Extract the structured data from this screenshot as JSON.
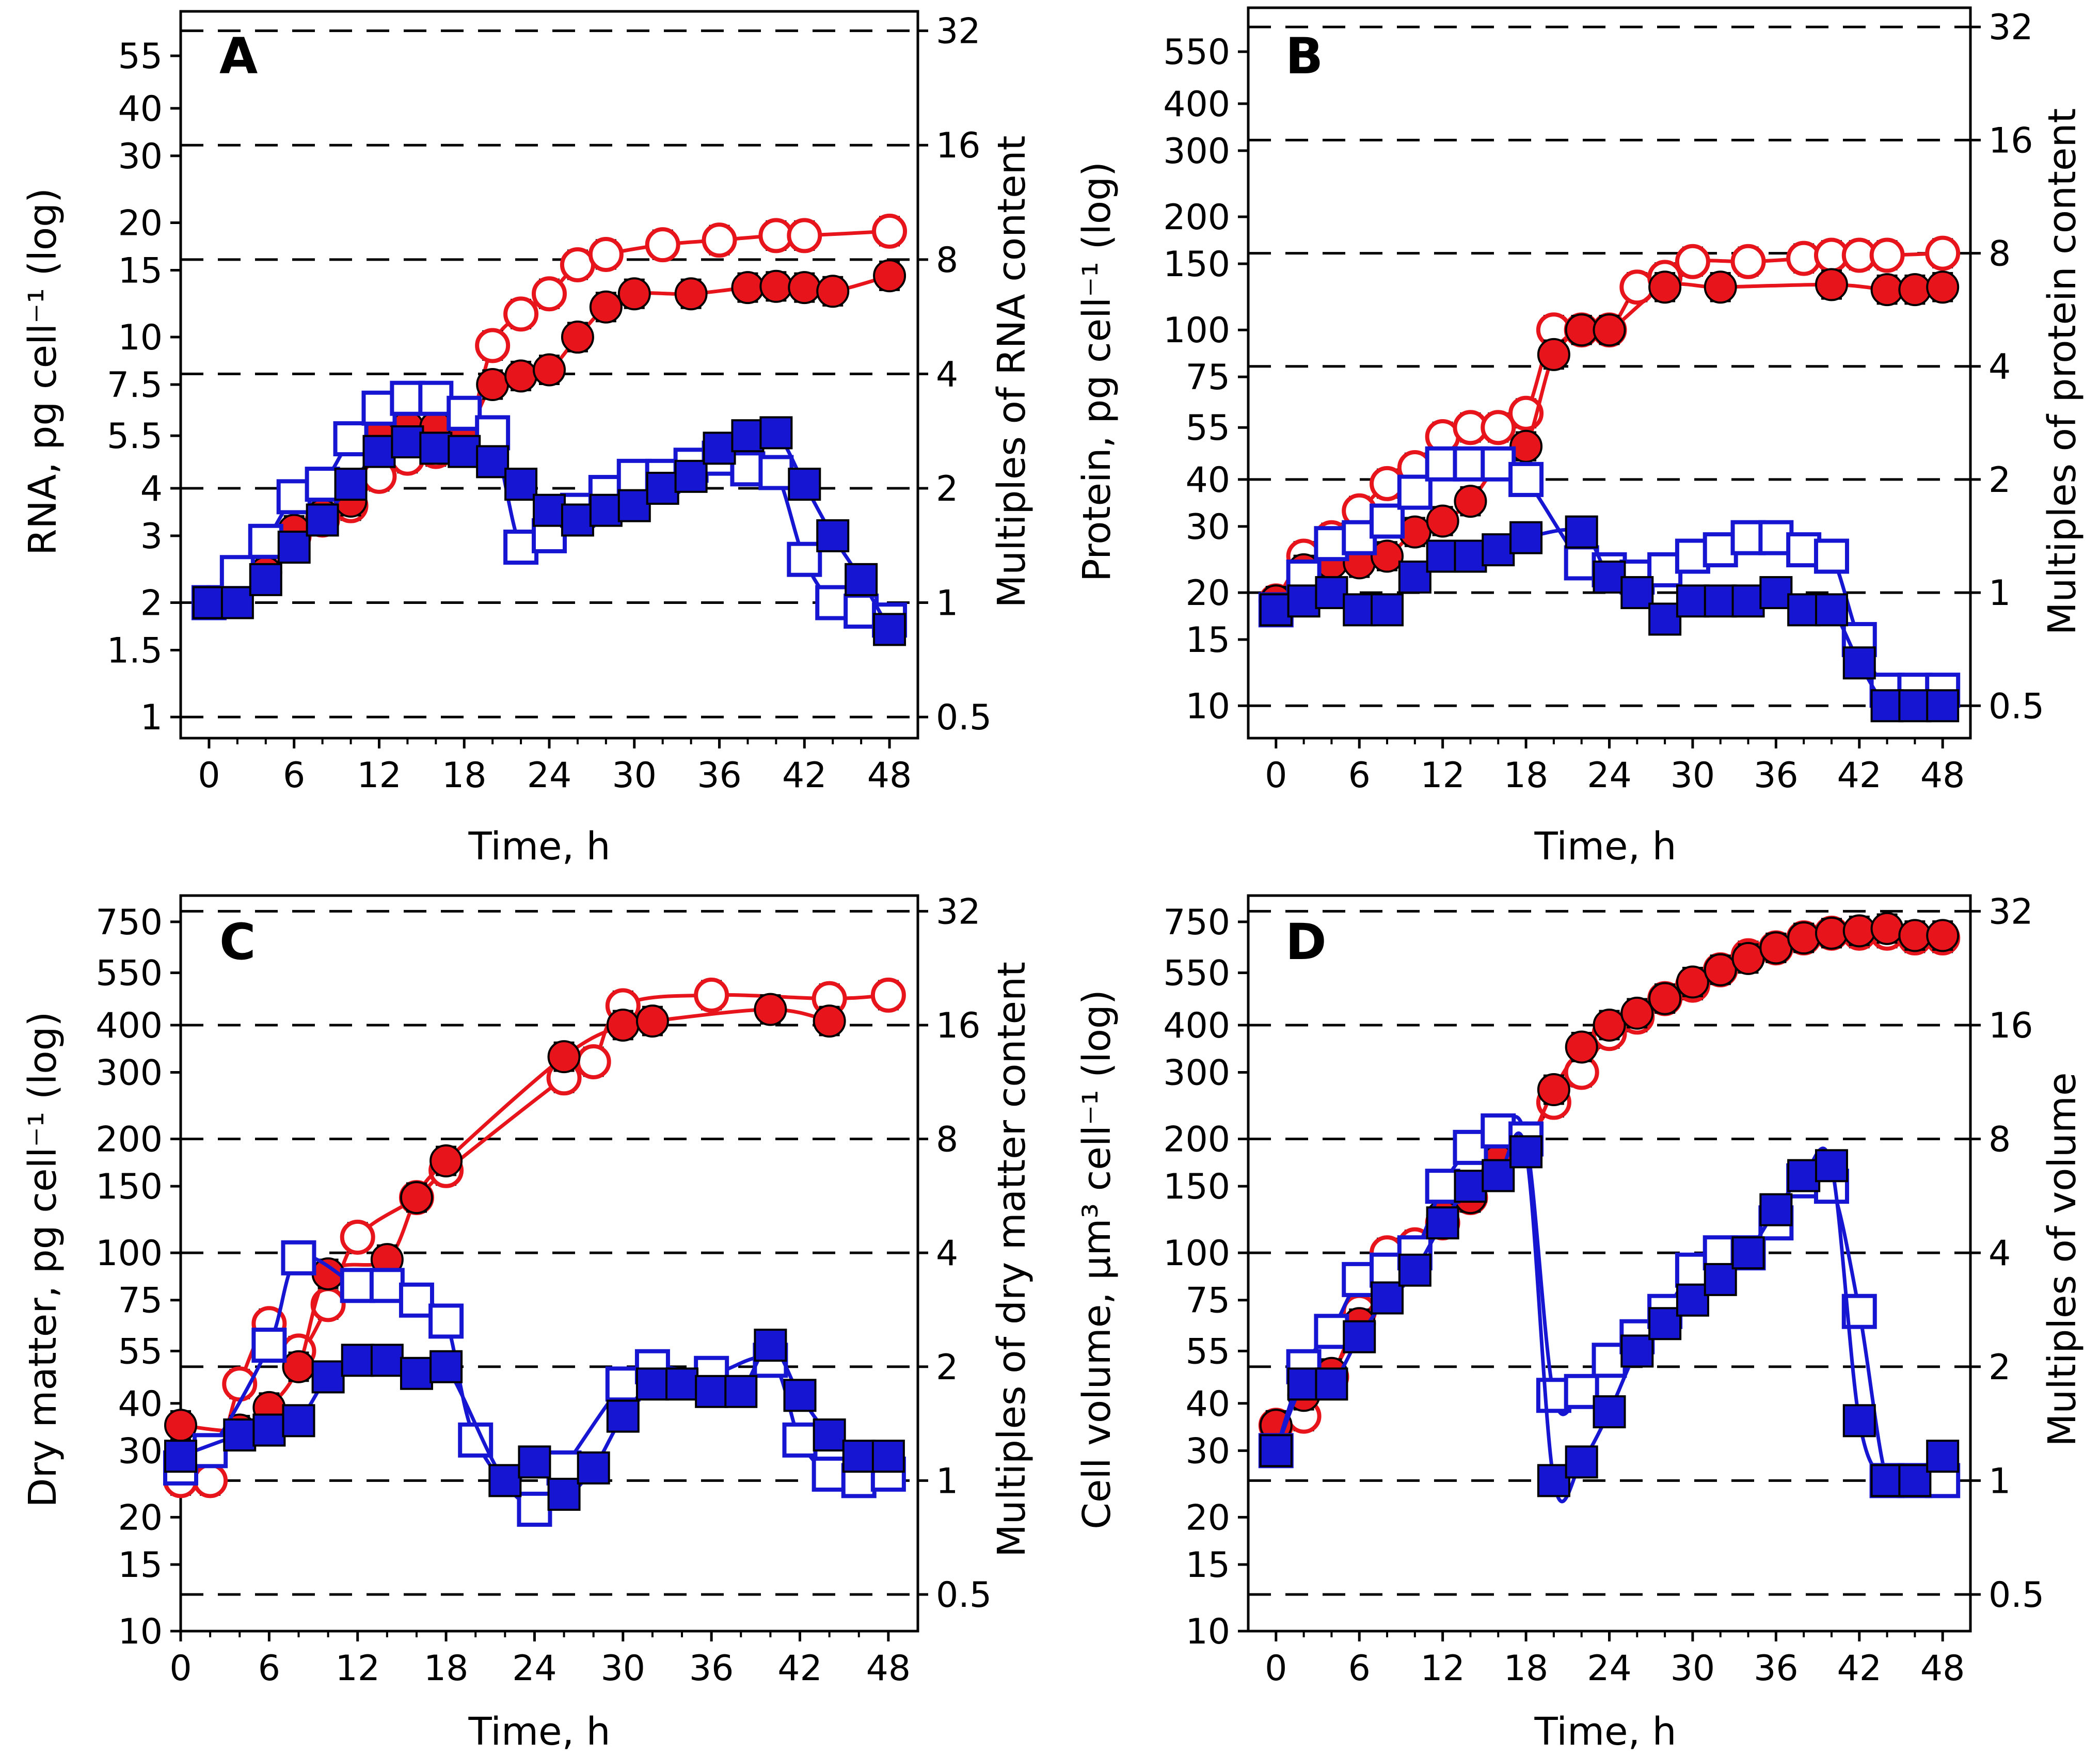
{
  "colors": {
    "red": "#e8141c",
    "blue": "#1616d2",
    "axis": "#000000"
  },
  "chart_data": [
    {
      "type": "line",
      "panel": "A",
      "ylabel": "RNA, pg cell⁻¹ (log)",
      "y2label": "Multiples of RNA content",
      "xlabel": "Time, h",
      "xlim": [
        -2,
        50
      ],
      "ylim": [
        0.88,
        72
      ],
      "x_ticks": [
        "0",
        "6",
        "12",
        "18",
        "24",
        "30",
        "36",
        "42",
        "48"
      ],
      "y_ticks": [
        "1",
        "1.5",
        "2",
        "3",
        "4",
        "5.5",
        "7.5",
        "10",
        "15",
        "20",
        "30",
        "40",
        "55"
      ],
      "y2_ticks": [
        "0.5",
        "1",
        "2",
        "4",
        "8",
        "16",
        "32"
      ],
      "hlines": [
        1,
        2,
        4,
        8,
        16,
        32,
        64
      ],
      "series": [
        {
          "name": "red-open",
          "color": "red",
          "marker": "circle",
          "filled": false,
          "x": [
            0,
            2,
            4,
            6,
            8,
            10,
            12,
            14,
            16,
            18,
            20,
            22,
            24,
            26,
            28,
            32,
            36,
            40,
            42,
            48
          ],
          "y": [
            2.0,
            2.3,
            2.7,
            3.0,
            3.3,
            3.6,
            4.3,
            4.8,
            5.0,
            5.2,
            9.5,
            11.5,
            13,
            15.5,
            16.5,
            17.5,
            18,
            18.5,
            18.5,
            19
          ]
        },
        {
          "name": "red-filled",
          "color": "red",
          "marker": "circle",
          "filled": true,
          "x": [
            0,
            2,
            4,
            6,
            8,
            10,
            12,
            14,
            16,
            18,
            20,
            22,
            24,
            26,
            28,
            30,
            34,
            38,
            40,
            42,
            44,
            48
          ],
          "y": [
            2.0,
            2.1,
            2.4,
            3.1,
            3.4,
            3.7,
            5.5,
            5.8,
            5.8,
            5.5,
            7.5,
            7.9,
            8.2,
            10,
            12,
            13,
            13,
            13.5,
            13.6,
            13.5,
            13.2,
            14.5
          ]
        },
        {
          "name": "blue-open",
          "color": "blue",
          "marker": "square",
          "filled": false,
          "x": [
            0,
            2,
            4,
            6,
            8,
            10,
            12,
            14,
            16,
            18,
            20,
            22,
            24,
            26,
            28,
            30,
            32,
            34,
            36,
            38,
            40,
            42,
            44,
            46,
            48
          ],
          "y": [
            2.0,
            2.4,
            2.9,
            3.8,
            4.1,
            5.4,
            6.5,
            6.9,
            6.9,
            6.3,
            5.6,
            2.8,
            3.0,
            3.5,
            3.9,
            4.3,
            4.3,
            4.6,
            4.8,
            4.5,
            4.4,
            2.6,
            2.0,
            1.9,
            1.8
          ]
        },
        {
          "name": "blue-filled",
          "color": "blue",
          "marker": "square",
          "filled": true,
          "x": [
            0,
            2,
            4,
            6,
            8,
            10,
            12,
            14,
            16,
            18,
            20,
            22,
            24,
            26,
            28,
            30,
            32,
            34,
            36,
            38,
            40,
            42,
            44,
            46,
            48
          ],
          "y": [
            2.0,
            2.0,
            2.3,
            2.8,
            3.3,
            4.1,
            5.0,
            5.3,
            5.1,
            5.0,
            4.7,
            4.1,
            3.5,
            3.3,
            3.5,
            3.6,
            4.0,
            4.3,
            5.1,
            5.5,
            5.6,
            4.1,
            3.0,
            2.3,
            1.7
          ]
        }
      ]
    },
    {
      "type": "line",
      "panel": "B",
      "ylabel": "Protein, pg cell⁻¹ (log)",
      "y2label": "Multiples of protein content",
      "xlabel": "Time, h",
      "xlim": [
        -2,
        50
      ],
      "ylim": [
        8.2,
        720
      ],
      "x_ticks": [
        "0",
        "6",
        "12",
        "18",
        "24",
        "30",
        "36",
        "42",
        "48"
      ],
      "y_ticks": [
        "10",
        "15",
        "20",
        "30",
        "40",
        "55",
        "75",
        "100",
        "150",
        "200",
        "300",
        "400",
        "550"
      ],
      "y2_ticks": [
        "0.5",
        "1",
        "2",
        "4",
        "8",
        "16",
        "32"
      ],
      "hlines": [
        10,
        20,
        40,
        80,
        160,
        320,
        640
      ],
      "series": [
        {
          "name": "red-open",
          "color": "red",
          "marker": "circle",
          "filled": false,
          "x": [
            0,
            2,
            4,
            6,
            8,
            10,
            12,
            14,
            16,
            18,
            20,
            22,
            24,
            26,
            28,
            30,
            34,
            38,
            40,
            42,
            44,
            48
          ],
          "y": [
            19,
            25,
            28,
            33,
            39,
            43,
            52,
            55,
            55,
            60,
            100,
            100,
            100,
            130,
            138,
            152,
            152,
            155,
            158,
            158,
            158,
            160
          ]
        },
        {
          "name": "red-filled",
          "color": "red",
          "marker": "circle",
          "filled": true,
          "x": [
            0,
            2,
            4,
            6,
            8,
            10,
            12,
            14,
            16,
            18,
            20,
            22,
            24,
            28,
            32,
            40,
            44,
            46,
            48
          ],
          "y": [
            19,
            23,
            24,
            24,
            25,
            29,
            31,
            35,
            44,
            49,
            86,
            100,
            100,
            130,
            130,
            132,
            128,
            128,
            130
          ]
        },
        {
          "name": "blue-open",
          "color": "blue",
          "marker": "square",
          "filled": false,
          "x": [
            0,
            2,
            4,
            6,
            8,
            10,
            12,
            14,
            16,
            18,
            22,
            24,
            26,
            28,
            30,
            32,
            34,
            36,
            38,
            40,
            42,
            44,
            46,
            48
          ],
          "y": [
            18,
            22,
            27,
            28,
            31,
            37,
            44,
            44,
            44,
            40,
            24,
            23,
            22,
            23,
            25,
            26,
            28,
            28,
            26,
            25,
            15,
            11,
            11,
            11
          ]
        },
        {
          "name": "blue-filled",
          "color": "blue",
          "marker": "square",
          "filled": true,
          "x": [
            0,
            2,
            4,
            6,
            8,
            10,
            12,
            14,
            16,
            18,
            22,
            24,
            26,
            28,
            30,
            32,
            34,
            36,
            38,
            40,
            42,
            44,
            46,
            48
          ],
          "y": [
            18,
            19,
            20,
            18,
            18,
            22,
            25,
            25,
            26,
            28,
            29,
            22,
            20,
            17,
            19,
            19,
            19,
            20,
            18,
            18,
            13,
            10,
            10,
            10
          ]
        }
      ]
    },
    {
      "type": "line",
      "panel": "C",
      "ylabel": "Dry matter, pg cell⁻¹ (log)",
      "y2label": "Multiples of dry matter content",
      "xlabel": "Time, h",
      "xlim": [
        0,
        50
      ],
      "ylim": [
        10,
        880
      ],
      "x_ticks": [
        "0",
        "6",
        "12",
        "18",
        "24",
        "30",
        "36",
        "42",
        "48"
      ],
      "y_ticks": [
        "10",
        "15",
        "20",
        "30",
        "40",
        "55",
        "75",
        "100",
        "150",
        "200",
        "300",
        "400",
        "550",
        "750"
      ],
      "y2_ticks": [
        "0.5",
        "1",
        "2",
        "4",
        "8",
        "16",
        "32"
      ],
      "hlines": [
        12.5,
        25,
        50,
        100,
        200,
        400,
        800
      ],
      "series": [
        {
          "name": "red-open",
          "color": "red",
          "marker": "circle",
          "filled": false,
          "x": [
            0,
            2,
            4,
            6,
            8,
            10,
            12,
            16,
            18,
            26,
            28,
            30,
            36,
            44,
            48
          ],
          "y": [
            25,
            25,
            45,
            65,
            55,
            73,
            110,
            140,
            165,
            290,
            320,
            450,
            480,
            470,
            480
          ]
        },
        {
          "name": "red-filled",
          "color": "red",
          "marker": "circle",
          "filled": true,
          "x": [
            0,
            4,
            6,
            8,
            10,
            14,
            16,
            18,
            26,
            30,
            32,
            40,
            44
          ],
          "y": [
            35,
            34,
            39,
            50,
            88,
            96,
            140,
            175,
            330,
            400,
            410,
            440,
            410
          ]
        },
        {
          "name": "blue-open",
          "color": "blue",
          "marker": "square",
          "filled": false,
          "x": [
            0,
            2,
            6,
            8,
            12,
            14,
            16,
            18,
            20,
            24,
            26,
            30,
            32,
            36,
            40,
            42,
            44,
            46,
            48
          ],
          "y": [
            27,
            30,
            57,
            97,
            82,
            82,
            75,
            66,
            32,
            21,
            27,
            45,
            50,
            48,
            52,
            32,
            26,
            25,
            26
          ]
        },
        {
          "name": "blue-filled",
          "color": "blue",
          "marker": "square",
          "filled": true,
          "x": [
            0,
            4,
            6,
            8,
            10,
            12,
            14,
            16,
            18,
            22,
            24,
            26,
            28,
            30,
            32,
            34,
            36,
            38,
            40,
            42,
            44,
            46,
            48
          ],
          "y": [
            29,
            33,
            34,
            36,
            47,
            52,
            52,
            48,
            50,
            25,
            28,
            23,
            27,
            37,
            45,
            45,
            43,
            43,
            57,
            42,
            33,
            29,
            29
          ]
        }
      ]
    },
    {
      "type": "line",
      "panel": "D",
      "ylabel": "Cell volume, µm³ cell⁻¹ (log)",
      "y2label": "Multiples of volume",
      "xlabel": "Time, h",
      "xlim": [
        -2,
        50
      ],
      "ylim": [
        10,
        880
      ],
      "x_ticks": [
        "0",
        "6",
        "12",
        "18",
        "24",
        "30",
        "36",
        "42",
        "48"
      ],
      "y_ticks": [
        "10",
        "15",
        "20",
        "30",
        "40",
        "55",
        "75",
        "100",
        "150",
        "200",
        "300",
        "400",
        "550",
        "750"
      ],
      "y2_ticks": [
        "0.5",
        "1",
        "2",
        "4",
        "8",
        "16",
        "32"
      ],
      "hlines": [
        12.5,
        25,
        50,
        100,
        200,
        400,
        800
      ],
      "series": [
        {
          "name": "red-open",
          "color": "red",
          "marker": "circle",
          "filled": false,
          "x": [
            0,
            2,
            4,
            6,
            8,
            10,
            12,
            14,
            16,
            18,
            20,
            22,
            24,
            26,
            28,
            30,
            32,
            34,
            36,
            38,
            40,
            42,
            44,
            46,
            48
          ],
          "y": [
            35,
            37,
            47,
            70,
            100,
            105,
            120,
            140,
            200,
            200,
            250,
            300,
            380,
            420,
            470,
            510,
            560,
            610,
            640,
            680,
            700,
            700,
            700,
            680,
            680
          ]
        },
        {
          "name": "red-filled",
          "color": "red",
          "marker": "circle",
          "filled": true,
          "x": [
            0,
            2,
            4,
            6,
            8,
            10,
            12,
            14,
            16,
            18,
            20,
            22,
            24,
            26,
            28,
            30,
            32,
            34,
            36,
            38,
            40,
            42,
            44,
            46,
            48
          ],
          "y": [
            35,
            42,
            48,
            65,
            80,
            95,
            125,
            140,
            175,
            190,
            270,
            350,
            400,
            430,
            470,
            520,
            560,
            600,
            640,
            680,
            700,
            710,
            720,
            690,
            690
          ]
        },
        {
          "name": "blue-open",
          "color": "blue",
          "marker": "square",
          "filled": false,
          "x": [
            0,
            2,
            4,
            6,
            8,
            10,
            12,
            14,
            16,
            18,
            20,
            22,
            24,
            26,
            28,
            30,
            32,
            34,
            36,
            38,
            40,
            42,
            44,
            46,
            48
          ],
          "y": [
            30,
            50,
            62,
            85,
            90,
            100,
            150,
            190,
            210,
            200,
            42,
            43,
            52,
            60,
            70,
            90,
            100,
            100,
            120,
            155,
            150,
            70,
            25,
            25,
            25
          ]
        },
        {
          "name": "blue-filled",
          "color": "blue",
          "marker": "square",
          "filled": true,
          "x": [
            0,
            2,
            4,
            6,
            8,
            10,
            12,
            14,
            16,
            18,
            20,
            22,
            24,
            26,
            28,
            30,
            32,
            34,
            36,
            38,
            40,
            42,
            44,
            46,
            48
          ],
          "y": [
            30,
            45,
            45,
            60,
            76,
            90,
            120,
            150,
            160,
            185,
            25,
            28,
            38,
            55,
            65,
            75,
            85,
            100,
            130,
            160,
            170,
            36,
            25,
            25,
            29
          ]
        }
      ]
    }
  ]
}
